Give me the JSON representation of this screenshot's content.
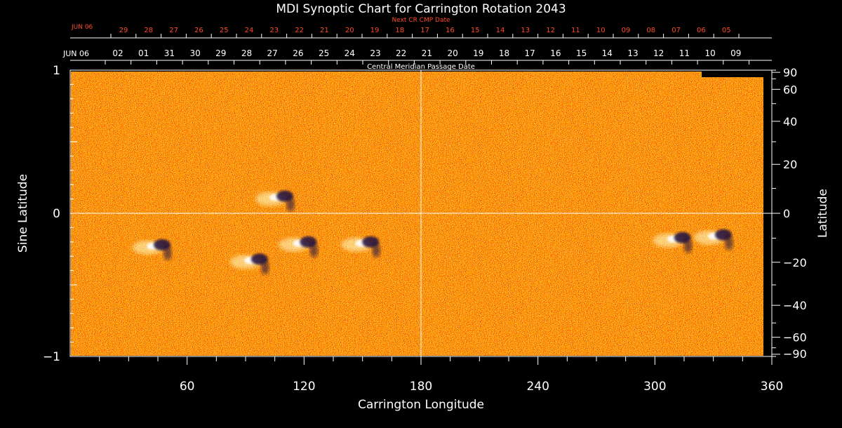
{
  "chart_data": {
    "type": "heatmap",
    "title": "MDI Synoptic Chart for Carrington Rotation 2043",
    "xlabel": "Carrington Longitude",
    "ylabel_left": "Sine Latitude",
    "ylabel_right": "Latitude",
    "xlim": [
      0,
      360
    ],
    "ylim": [
      -1,
      1
    ],
    "x_ticks": [
      60,
      120,
      180,
      240,
      300,
      360
    ],
    "y_ticks_left": [
      {
        "value": 1,
        "label": "1"
      },
      {
        "value": 0,
        "label": "0"
      },
      {
        "value": -1,
        "label": "−1"
      }
    ],
    "y_ticks_right": [
      90,
      60,
      40,
      20,
      0,
      -20,
      -40,
      -60,
      -90
    ],
    "y_ticks_right_labels": [
      "90",
      "60",
      "40",
      "20",
      "0",
      "−20",
      "−40",
      "−60",
      "−90"
    ],
    "cmp_axis_title": "Central Meridian Passage Date",
    "cmp_start_label": "JUN 06",
    "cmp_dates": [
      "02",
      "01",
      "31",
      "30",
      "29",
      "28",
      "27",
      "26",
      "25",
      "24",
      "23",
      "22",
      "21",
      "20",
      "19",
      "18",
      "17",
      "16",
      "15",
      "14",
      "13",
      "12",
      "11",
      "10",
      "09"
    ],
    "next_cr_axis_title": "Next CR CMP Date",
    "next_cr_start_label": "JUN 06",
    "next_cr_dates": [
      "29",
      "28",
      "27",
      "26",
      "25",
      "24",
      "23",
      "22",
      "21",
      "20",
      "19",
      "18",
      "17",
      "16",
      "15",
      "14",
      "13",
      "12",
      "11",
      "10",
      "09",
      "08",
      "07",
      "06",
      "05"
    ],
    "guide_lines": {
      "longitude": 180,
      "sine_latitude": 0
    },
    "active_regions": [
      {
        "lon": 45,
        "sinlat": -0.22
      },
      {
        "lon": 95,
        "sinlat": -0.32
      },
      {
        "lon": 108,
        "sinlat": 0.12
      },
      {
        "lon": 120,
        "sinlat": -0.2
      },
      {
        "lon": 152,
        "sinlat": -0.2
      },
      {
        "lon": 312,
        "sinlat": -0.17
      },
      {
        "lon": 333,
        "sinlat": -0.15
      }
    ],
    "colors": {
      "background": "#000000",
      "map_base": "#e8501a",
      "positive_polarity": "#ffffcc",
      "negative_polarity": "#1a1040",
      "next_cr_labels": "#ff4a2a"
    }
  }
}
